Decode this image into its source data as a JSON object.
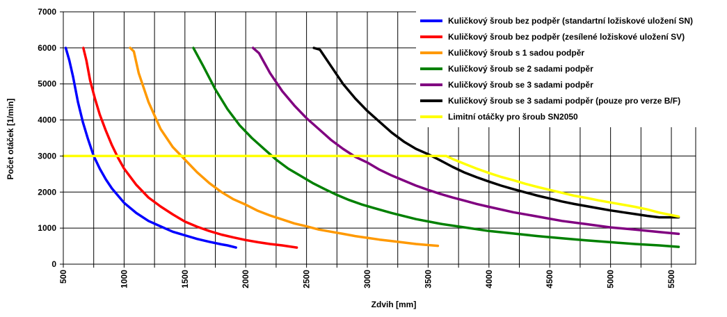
{
  "chart_data": {
    "type": "line",
    "xlabel": "Zdvih [mm]",
    "ylabel": "Počet otáček  [1/min]",
    "xlim": [
      500,
      5700
    ],
    "ylim": [
      0,
      7000
    ],
    "x_ticks": [
      500,
      1000,
      1500,
      2000,
      2500,
      3000,
      3500,
      4000,
      4500,
      5000,
      5500
    ],
    "y_ticks": [
      0,
      1000,
      2000,
      3000,
      4000,
      5000,
      6000,
      7000
    ],
    "x_tick_labels": [
      "500",
      "1000",
      "1500",
      "2000",
      "2500",
      "3000",
      "3500",
      "4000",
      "4500",
      "5000",
      "5500"
    ],
    "y_tick_labels": [
      "0",
      "1000",
      "2000",
      "3000",
      "4000",
      "5000",
      "6000",
      "7000"
    ],
    "grid": true,
    "legend_position": "top-right",
    "series": [
      {
        "name": "Kuličkový šroub bez podpěr (standartní ložiskové uložení SN)",
        "color": "#0000ff",
        "points": [
          [
            520,
            6000
          ],
          [
            550,
            5650
          ],
          [
            580,
            5200
          ],
          [
            620,
            4500
          ],
          [
            660,
            3950
          ],
          [
            700,
            3500
          ],
          [
            750,
            3000
          ],
          [
            800,
            2650
          ],
          [
            850,
            2350
          ],
          [
            900,
            2100
          ],
          [
            950,
            1900
          ],
          [
            1000,
            1700
          ],
          [
            1100,
            1420
          ],
          [
            1200,
            1200
          ],
          [
            1300,
            1050
          ],
          [
            1400,
            900
          ],
          [
            1500,
            800
          ],
          [
            1600,
            700
          ],
          [
            1700,
            620
          ],
          [
            1800,
            550
          ],
          [
            1850,
            520
          ],
          [
            1920,
            460
          ]
        ]
      },
      {
        "name": "Kuličkový šroub bez podpěr (zesílené ložiskové uložení SV)",
        "color": "#ff0000",
        "points": [
          [
            665,
            6000
          ],
          [
            690,
            5650
          ],
          [
            720,
            5100
          ],
          [
            760,
            4600
          ],
          [
            800,
            4150
          ],
          [
            850,
            3700
          ],
          [
            900,
            3300
          ],
          [
            950,
            2950
          ],
          [
            1000,
            2650
          ],
          [
            1100,
            2200
          ],
          [
            1200,
            1850
          ],
          [
            1300,
            1600
          ],
          [
            1400,
            1380
          ],
          [
            1500,
            1180
          ],
          [
            1600,
            1040
          ],
          [
            1700,
            920
          ],
          [
            1800,
            820
          ],
          [
            1900,
            740
          ],
          [
            2000,
            670
          ],
          [
            2100,
            610
          ],
          [
            2200,
            560
          ],
          [
            2300,
            520
          ],
          [
            2420,
            460
          ]
        ]
      },
      {
        "name": "Kuličkový šroub s 1 sadou podpěr",
        "color": "#ff9900",
        "points": [
          [
            1050,
            6000
          ],
          [
            1080,
            5900
          ],
          [
            1120,
            5300
          ],
          [
            1200,
            4500
          ],
          [
            1300,
            3750
          ],
          [
            1400,
            3250
          ],
          [
            1500,
            2900
          ],
          [
            1600,
            2550
          ],
          [
            1700,
            2250
          ],
          [
            1800,
            2000
          ],
          [
            1900,
            1800
          ],
          [
            2000,
            1650
          ],
          [
            2100,
            1480
          ],
          [
            2200,
            1350
          ],
          [
            2300,
            1240
          ],
          [
            2400,
            1130
          ],
          [
            2500,
            1050
          ],
          [
            2600,
            960
          ],
          [
            2700,
            900
          ],
          [
            2800,
            840
          ],
          [
            2900,
            780
          ],
          [
            3000,
            730
          ],
          [
            3100,
            680
          ],
          [
            3200,
            640
          ],
          [
            3300,
            600
          ],
          [
            3400,
            560
          ],
          [
            3500,
            530
          ],
          [
            3580,
            510
          ]
        ]
      },
      {
        "name": "Kuličkový šroub se 2 sadami podpěr",
        "color": "#008000",
        "points": [
          [
            1570,
            6000
          ],
          [
            1650,
            5500
          ],
          [
            1750,
            4850
          ],
          [
            1850,
            4300
          ],
          [
            1950,
            3850
          ],
          [
            2050,
            3500
          ],
          [
            2150,
            3200
          ],
          [
            2250,
            2900
          ],
          [
            2350,
            2650
          ],
          [
            2450,
            2450
          ],
          [
            2550,
            2250
          ],
          [
            2650,
            2080
          ],
          [
            2750,
            1920
          ],
          [
            2850,
            1780
          ],
          [
            2950,
            1660
          ],
          [
            3050,
            1560
          ],
          [
            3200,
            1420
          ],
          [
            3400,
            1250
          ],
          [
            3600,
            1120
          ],
          [
            3800,
            1020
          ],
          [
            4000,
            920
          ],
          [
            4200,
            850
          ],
          [
            4400,
            780
          ],
          [
            4600,
            720
          ],
          [
            4800,
            660
          ],
          [
            5000,
            610
          ],
          [
            5200,
            560
          ],
          [
            5400,
            520
          ],
          [
            5560,
            480
          ]
        ]
      },
      {
        "name": "Kuličkový šroub se 3 sadami podpěr",
        "color": "#800080",
        "points": [
          [
            2060,
            6000
          ],
          [
            2110,
            5850
          ],
          [
            2200,
            5300
          ],
          [
            2300,
            4800
          ],
          [
            2400,
            4400
          ],
          [
            2500,
            4050
          ],
          [
            2600,
            3750
          ],
          [
            2700,
            3450
          ],
          [
            2800,
            3200
          ],
          [
            2900,
            2980
          ],
          [
            3000,
            2820
          ],
          [
            3100,
            2620
          ],
          [
            3200,
            2460
          ],
          [
            3300,
            2320
          ],
          [
            3400,
            2180
          ],
          [
            3500,
            2060
          ],
          [
            3600,
            1950
          ],
          [
            3700,
            1850
          ],
          [
            3800,
            1760
          ],
          [
            3900,
            1670
          ],
          [
            4000,
            1590
          ],
          [
            4200,
            1440
          ],
          [
            4400,
            1320
          ],
          [
            4600,
            1200
          ],
          [
            4800,
            1110
          ],
          [
            5000,
            1020
          ],
          [
            5200,
            960
          ],
          [
            5400,
            890
          ],
          [
            5560,
            840
          ]
        ]
      },
      {
        "name": "Kuličkový šroub se 3 sadami podpěr (pouze pro verze B/F)",
        "color": "#000000",
        "points": [
          [
            2560,
            6000
          ],
          [
            2610,
            5950
          ],
          [
            2700,
            5500
          ],
          [
            2800,
            5000
          ],
          [
            2900,
            4600
          ],
          [
            3000,
            4250
          ],
          [
            3100,
            3950
          ],
          [
            3200,
            3650
          ],
          [
            3300,
            3400
          ],
          [
            3400,
            3200
          ],
          [
            3500,
            3050
          ],
          [
            3600,
            2880
          ],
          [
            3700,
            2700
          ],
          [
            3800,
            2540
          ],
          [
            3900,
            2410
          ],
          [
            4000,
            2290
          ],
          [
            4100,
            2180
          ],
          [
            4200,
            2080
          ],
          [
            4300,
            1990
          ],
          [
            4400,
            1900
          ],
          [
            4500,
            1820
          ],
          [
            4600,
            1740
          ],
          [
            4700,
            1670
          ],
          [
            4800,
            1610
          ],
          [
            4900,
            1550
          ],
          [
            5000,
            1490
          ],
          [
            5100,
            1440
          ],
          [
            5200,
            1390
          ],
          [
            5300,
            1340
          ],
          [
            5400,
            1300
          ],
          [
            5560,
            1300
          ]
        ]
      },
      {
        "name": "Limitní otáčky pro šroub SN2050",
        "color": "#ffff00",
        "points": [
          [
            500,
            3000
          ],
          [
            3650,
            3000
          ],
          [
            3700,
            2920
          ],
          [
            3800,
            2780
          ],
          [
            3900,
            2650
          ],
          [
            4000,
            2530
          ],
          [
            4100,
            2420
          ],
          [
            4200,
            2330
          ],
          [
            4300,
            2230
          ],
          [
            4400,
            2140
          ],
          [
            4500,
            2060
          ],
          [
            4600,
            1980
          ],
          [
            4700,
            1900
          ],
          [
            4800,
            1840
          ],
          [
            4900,
            1770
          ],
          [
            5000,
            1710
          ],
          [
            5100,
            1650
          ],
          [
            5200,
            1590
          ],
          [
            5300,
            1520
          ],
          [
            5400,
            1430
          ],
          [
            5560,
            1320
          ]
        ]
      }
    ]
  }
}
